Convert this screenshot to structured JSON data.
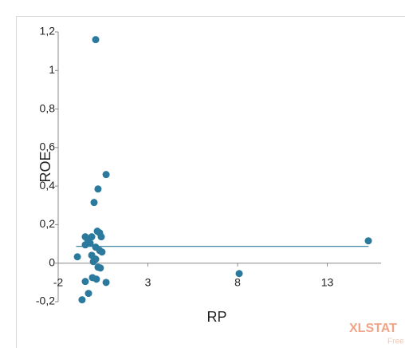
{
  "chart_data": {
    "type": "scatter",
    "x_label": "RP",
    "y_label": "ROE",
    "xlim": [
      -2,
      16
    ],
    "ylim": [
      -0.2,
      1.2
    ],
    "xticks": [
      -2,
      3,
      8,
      13
    ],
    "yticks": [
      {
        "value": -0.2,
        "label": "-0,2"
      },
      0,
      {
        "value": 0.2,
        "label": "0,2"
      },
      {
        "value": 0.4,
        "label": "0,4"
      },
      {
        "value": 0.6,
        "label": "0,6"
      },
      {
        "value": 0.8,
        "label": "0,8"
      },
      1,
      {
        "value": 1.2,
        "label": "1,2"
      }
    ],
    "series": [
      {
        "color": "#2b7a9e",
        "x": [
          0.09,
          0.67,
          0.22,
          0,
          15.29,
          8.09,
          -0.93,
          -0.49,
          -0.36,
          -0.13,
          0.18,
          0.31,
          0.4,
          -0.49,
          -0.22,
          0.09,
          0.31,
          0.44,
          -0.13,
          0.09,
          -0.04,
          0.22,
          0.35,
          -0.09,
          0.13,
          -0.49,
          0.67,
          -0.31,
          -0.67
        ],
        "values": [
          1.16,
          0.46,
          0.385,
          0.315,
          0.116,
          -0.054,
          0.033,
          0.137,
          0.124,
          0.137,
          0.166,
          0.157,
          0.137,
          0.095,
          0.104,
          0.083,
          0.066,
          0.058,
          0.041,
          0.021,
          0.008,
          -0.021,
          -0.025,
          -0.075,
          -0.083,
          -0.095,
          -0.1,
          -0.157,
          -0.19
        ]
      },
      {
        "type": "line",
        "color": "#2b7a9e",
        "x": [
          -1,
          15.3
        ],
        "values": [
          0.087,
          0.087
        ]
      }
    ],
    "watermark": "XLSTAT",
    "watermark_sub": "Free"
  }
}
